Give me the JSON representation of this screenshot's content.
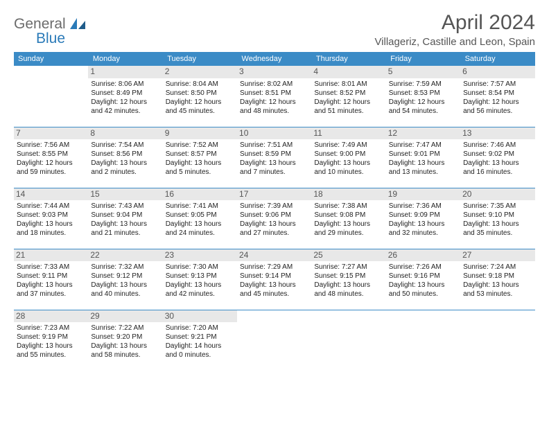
{
  "brand": {
    "part1": "General",
    "part2": "Blue"
  },
  "title": "April 2024",
  "location": "Villageriz, Castille and Leon, Spain",
  "header_bg": "#3b8bc6",
  "daynum_bg": "#e8e8e8",
  "days": [
    "Sunday",
    "Monday",
    "Tuesday",
    "Wednesday",
    "Thursday",
    "Friday",
    "Saturday"
  ],
  "weeks": [
    [
      null,
      {
        "n": "1",
        "sunrise": "8:06 AM",
        "sunset": "8:49 PM",
        "daylight": "12 hours and 42 minutes."
      },
      {
        "n": "2",
        "sunrise": "8:04 AM",
        "sunset": "8:50 PM",
        "daylight": "12 hours and 45 minutes."
      },
      {
        "n": "3",
        "sunrise": "8:02 AM",
        "sunset": "8:51 PM",
        "daylight": "12 hours and 48 minutes."
      },
      {
        "n": "4",
        "sunrise": "8:01 AM",
        "sunset": "8:52 PM",
        "daylight": "12 hours and 51 minutes."
      },
      {
        "n": "5",
        "sunrise": "7:59 AM",
        "sunset": "8:53 PM",
        "daylight": "12 hours and 54 minutes."
      },
      {
        "n": "6",
        "sunrise": "7:57 AM",
        "sunset": "8:54 PM",
        "daylight": "12 hours and 56 minutes."
      }
    ],
    [
      {
        "n": "7",
        "sunrise": "7:56 AM",
        "sunset": "8:55 PM",
        "daylight": "12 hours and 59 minutes."
      },
      {
        "n": "8",
        "sunrise": "7:54 AM",
        "sunset": "8:56 PM",
        "daylight": "13 hours and 2 minutes."
      },
      {
        "n": "9",
        "sunrise": "7:52 AM",
        "sunset": "8:57 PM",
        "daylight": "13 hours and 5 minutes."
      },
      {
        "n": "10",
        "sunrise": "7:51 AM",
        "sunset": "8:59 PM",
        "daylight": "13 hours and 7 minutes."
      },
      {
        "n": "11",
        "sunrise": "7:49 AM",
        "sunset": "9:00 PM",
        "daylight": "13 hours and 10 minutes."
      },
      {
        "n": "12",
        "sunrise": "7:47 AM",
        "sunset": "9:01 PM",
        "daylight": "13 hours and 13 minutes."
      },
      {
        "n": "13",
        "sunrise": "7:46 AM",
        "sunset": "9:02 PM",
        "daylight": "13 hours and 16 minutes."
      }
    ],
    [
      {
        "n": "14",
        "sunrise": "7:44 AM",
        "sunset": "9:03 PM",
        "daylight": "13 hours and 18 minutes."
      },
      {
        "n": "15",
        "sunrise": "7:43 AM",
        "sunset": "9:04 PM",
        "daylight": "13 hours and 21 minutes."
      },
      {
        "n": "16",
        "sunrise": "7:41 AM",
        "sunset": "9:05 PM",
        "daylight": "13 hours and 24 minutes."
      },
      {
        "n": "17",
        "sunrise": "7:39 AM",
        "sunset": "9:06 PM",
        "daylight": "13 hours and 27 minutes."
      },
      {
        "n": "18",
        "sunrise": "7:38 AM",
        "sunset": "9:08 PM",
        "daylight": "13 hours and 29 minutes."
      },
      {
        "n": "19",
        "sunrise": "7:36 AM",
        "sunset": "9:09 PM",
        "daylight": "13 hours and 32 minutes."
      },
      {
        "n": "20",
        "sunrise": "7:35 AM",
        "sunset": "9:10 PM",
        "daylight": "13 hours and 35 minutes."
      }
    ],
    [
      {
        "n": "21",
        "sunrise": "7:33 AM",
        "sunset": "9:11 PM",
        "daylight": "13 hours and 37 minutes."
      },
      {
        "n": "22",
        "sunrise": "7:32 AM",
        "sunset": "9:12 PM",
        "daylight": "13 hours and 40 minutes."
      },
      {
        "n": "23",
        "sunrise": "7:30 AM",
        "sunset": "9:13 PM",
        "daylight": "13 hours and 42 minutes."
      },
      {
        "n": "24",
        "sunrise": "7:29 AM",
        "sunset": "9:14 PM",
        "daylight": "13 hours and 45 minutes."
      },
      {
        "n": "25",
        "sunrise": "7:27 AM",
        "sunset": "9:15 PM",
        "daylight": "13 hours and 48 minutes."
      },
      {
        "n": "26",
        "sunrise": "7:26 AM",
        "sunset": "9:16 PM",
        "daylight": "13 hours and 50 minutes."
      },
      {
        "n": "27",
        "sunrise": "7:24 AM",
        "sunset": "9:18 PM",
        "daylight": "13 hours and 53 minutes."
      }
    ],
    [
      {
        "n": "28",
        "sunrise": "7:23 AM",
        "sunset": "9:19 PM",
        "daylight": "13 hours and 55 minutes."
      },
      {
        "n": "29",
        "sunrise": "7:22 AM",
        "sunset": "9:20 PM",
        "daylight": "13 hours and 58 minutes."
      },
      {
        "n": "30",
        "sunrise": "7:20 AM",
        "sunset": "9:21 PM",
        "daylight": "14 hours and 0 minutes."
      },
      null,
      null,
      null,
      null
    ]
  ],
  "labels": {
    "sunrise": "Sunrise:",
    "sunset": "Sunset:",
    "daylight": "Daylight:"
  }
}
